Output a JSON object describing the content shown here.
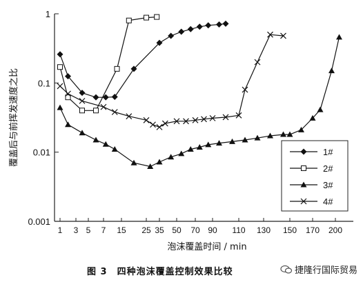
{
  "chart_data": {
    "type": "line",
    "title": "",
    "xlabel": "泡沫覆盖时间 / min",
    "ylabel": "覆盖后与前挥发速度之比",
    "yscale": "log",
    "ylim": [
      0.001,
      1
    ],
    "yticks": [
      "0.001",
      "0.01",
      "0.1",
      "1"
    ],
    "x_ticks": [
      "1",
      "3",
      "5",
      "7",
      "15",
      "25",
      "35",
      "50",
      "70",
      "90",
      "110",
      "130",
      "150",
      "170",
      "200"
    ],
    "grid": false,
    "legend_position": "right",
    "series": [
      {
        "name": "1#",
        "marker": "diamond",
        "points": [
          [
            1,
            0.26
          ],
          [
            2,
            0.125
          ],
          [
            4,
            0.072
          ],
          [
            6,
            0.062
          ],
          [
            8,
            0.062
          ],
          [
            12,
            0.063
          ],
          [
            20,
            0.16
          ],
          [
            35,
            0.38
          ],
          [
            45,
            0.48
          ],
          [
            55,
            0.55
          ],
          [
            65,
            0.6
          ],
          [
            75,
            0.65
          ],
          [
            85,
            0.68
          ],
          [
            95,
            0.7
          ],
          [
            100,
            0.72
          ]
        ]
      },
      {
        "name": "2#",
        "marker": "square-open",
        "points": [
          [
            1,
            0.17
          ],
          [
            2,
            0.062
          ],
          [
            4,
            0.04
          ],
          [
            6,
            0.04
          ],
          [
            13,
            0.16
          ],
          [
            18,
            0.8
          ],
          [
            25,
            0.88
          ],
          [
            33,
            0.9
          ]
        ]
      },
      {
        "name": "3#",
        "marker": "triangle",
        "points": [
          [
            1,
            0.044
          ],
          [
            2,
            0.025
          ],
          [
            4,
            0.019
          ],
          [
            6,
            0.015
          ],
          [
            8,
            0.013
          ],
          [
            12,
            0.011
          ],
          [
            20,
            0.007
          ],
          [
            28,
            0.0062
          ],
          [
            35,
            0.0072
          ],
          [
            45,
            0.0085
          ],
          [
            55,
            0.0095
          ],
          [
            65,
            0.011
          ],
          [
            75,
            0.0118
          ],
          [
            85,
            0.0128
          ],
          [
            95,
            0.0135
          ],
          [
            105,
            0.0142
          ],
          [
            115,
            0.015
          ],
          [
            125,
            0.016
          ],
          [
            135,
            0.0172
          ],
          [
            145,
            0.018
          ],
          [
            150,
            0.018
          ],
          [
            160,
            0.021
          ],
          [
            170,
            0.031
          ],
          [
            180,
            0.041
          ],
          [
            195,
            0.15
          ],
          [
            205,
            0.46
          ]
        ]
      },
      {
        "name": "4#",
        "marker": "x",
        "points": [
          [
            1,
            0.09
          ],
          [
            2,
            0.07
          ],
          [
            4,
            0.055
          ],
          [
            7,
            0.045
          ],
          [
            12,
            0.038
          ],
          [
            18,
            0.033
          ],
          [
            25,
            0.029
          ],
          [
            30,
            0.025
          ],
          [
            35,
            0.023
          ],
          [
            40,
            0.026
          ],
          [
            50,
            0.028
          ],
          [
            60,
            0.028
          ],
          [
            70,
            0.029
          ],
          [
            80,
            0.03
          ],
          [
            90,
            0.031
          ],
          [
            100,
            0.032
          ],
          [
            110,
            0.034
          ],
          [
            115,
            0.08
          ],
          [
            125,
            0.2
          ],
          [
            135,
            0.5
          ],
          [
            145,
            0.48
          ]
        ]
      }
    ]
  },
  "caption": "图 3　四种泡沫覆盖控制效果比较",
  "watermark": "捷隆行国际贸易"
}
